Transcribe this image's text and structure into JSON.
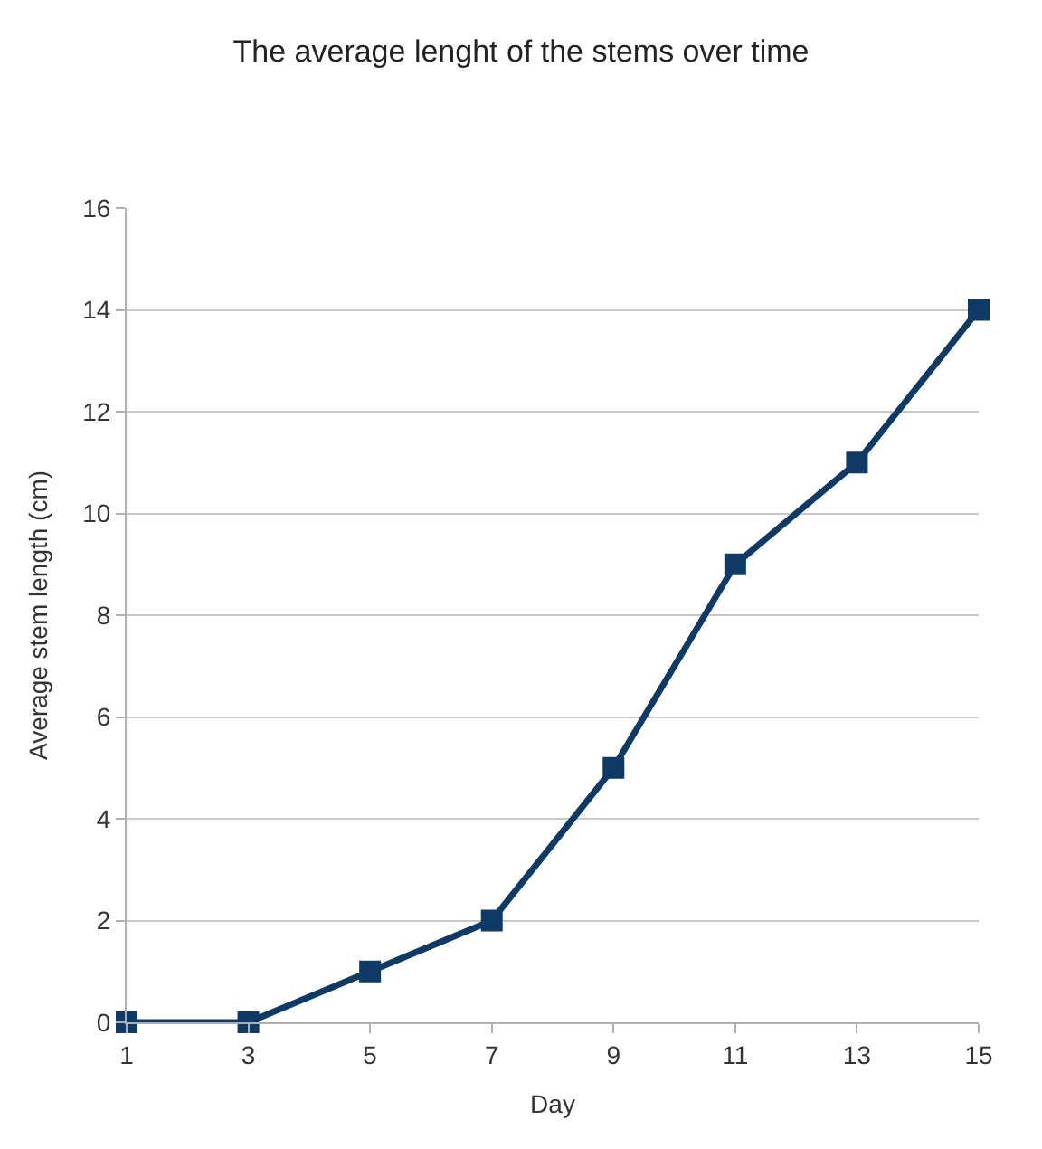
{
  "chart_data": {
    "type": "line",
    "title": "The average lenght of the stems over time",
    "xlabel": "Day",
    "ylabel": "Average stem length (cm)",
    "x": [
      1,
      3,
      5,
      7,
      9,
      11,
      13,
      15
    ],
    "series": [
      {
        "color": "#0f3a66",
        "values": [
          0,
          0,
          1,
          2,
          5,
          9,
          11,
          14
        ]
      }
    ],
    "xlim": [
      1,
      15
    ],
    "xticks": [
      1,
      3,
      5,
      7,
      9,
      11,
      13,
      15
    ],
    "ylim": [
      0,
      16
    ],
    "yticks": [
      0,
      2,
      4,
      6,
      8,
      10,
      12,
      14,
      16
    ],
    "grid": "y",
    "marker": "square",
    "line_style": "solid"
  }
}
